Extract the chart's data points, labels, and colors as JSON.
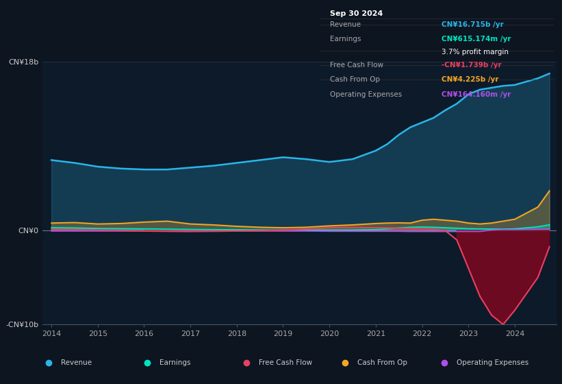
{
  "bg_color": "#0d1520",
  "plot_bg_color": "#0d1a2a",
  "years": [
    2014,
    2014.5,
    2015,
    2015.5,
    2016,
    2016.5,
    2017,
    2017.5,
    2018,
    2018.5,
    2019,
    2019.5,
    2020,
    2020.5,
    2021,
    2021.25,
    2021.5,
    2021.75,
    2022,
    2022.25,
    2022.5,
    2022.75,
    2023,
    2023.25,
    2023.5,
    2023.75,
    2024,
    2024.5,
    2024.75
  ],
  "revenue": [
    7.5,
    7.2,
    6.8,
    6.6,
    6.5,
    6.5,
    6.7,
    6.9,
    7.2,
    7.5,
    7.8,
    7.6,
    7.3,
    7.6,
    8.5,
    9.2,
    10.2,
    11.0,
    11.5,
    12.0,
    12.8,
    13.5,
    14.5,
    15.0,
    15.2,
    15.4,
    15.5,
    16.2,
    16.715
  ],
  "earnings": [
    0.3,
    0.28,
    0.22,
    0.2,
    0.18,
    0.15,
    0.12,
    0.1,
    0.08,
    0.06,
    0.05,
    0.05,
    0.05,
    0.06,
    0.1,
    0.18,
    0.28,
    0.35,
    0.38,
    0.35,
    0.3,
    0.25,
    0.2,
    0.18,
    0.16,
    0.15,
    0.18,
    0.4,
    0.615
  ],
  "free_cash_flow": [
    0.1,
    0.08,
    0.05,
    0.02,
    -0.05,
    -0.08,
    -0.1,
    -0.08,
    -0.05,
    -0.02,
    0.05,
    0.15,
    0.3,
    0.32,
    0.3,
    0.28,
    0.25,
    0.22,
    0.2,
    0.1,
    0.0,
    -1.0,
    -4.0,
    -7.0,
    -9.0,
    -10.0,
    -8.5,
    -5.0,
    -1.739
  ],
  "cash_from_op": [
    0.8,
    0.85,
    0.7,
    0.75,
    0.9,
    1.0,
    0.7,
    0.6,
    0.45,
    0.35,
    0.3,
    0.35,
    0.5,
    0.6,
    0.75,
    0.8,
    0.82,
    0.8,
    1.1,
    1.2,
    1.1,
    1.0,
    0.8,
    0.7,
    0.8,
    1.0,
    1.2,
    2.5,
    4.225
  ],
  "operating_expenses": [
    -0.05,
    -0.05,
    -0.05,
    -0.05,
    -0.05,
    -0.05,
    -0.05,
    -0.05,
    -0.05,
    -0.05,
    -0.05,
    -0.05,
    -0.08,
    -0.08,
    -0.08,
    -0.08,
    -0.08,
    -0.1,
    -0.1,
    -0.1,
    -0.1,
    -0.1,
    -0.1,
    -0.1,
    0.05,
    0.1,
    0.1,
    0.14,
    0.164
  ],
  "revenue_color": "#29b5e8",
  "earnings_color": "#00e5c0",
  "fcf_color": "#e84060",
  "cashop_color": "#f5a623",
  "opex_color": "#b050e8",
  "ylim": [
    -10,
    18
  ],
  "info_box": {
    "date": "Sep 30 2024",
    "rows": [
      {
        "label": "Revenue",
        "value": "CN¥16.715b /yr",
        "value_color": "#29b5e8"
      },
      {
        "label": "Earnings",
        "value": "CN¥615.174m /yr",
        "value_color": "#00e5c0"
      },
      {
        "label": "",
        "value": "3.7% profit margin",
        "value_color": "#ffffff"
      },
      {
        "label": "Free Cash Flow",
        "value": "-CN¥1.739b /yr",
        "value_color": "#e84060"
      },
      {
        "label": "Cash From Op",
        "value": "CN¥4.225b /yr",
        "value_color": "#f5a623"
      },
      {
        "label": "Operating Expenses",
        "value": "CN¥164.160m /yr",
        "value_color": "#b050e8"
      }
    ]
  },
  "legend_items": [
    {
      "label": "Revenue",
      "color": "#29b5e8"
    },
    {
      "label": "Earnings",
      "color": "#00e5c0"
    },
    {
      "label": "Free Cash Flow",
      "color": "#e84060"
    },
    {
      "label": "Cash From Op",
      "color": "#f5a623"
    },
    {
      "label": "Operating Expenses",
      "color": "#b050e8"
    }
  ]
}
